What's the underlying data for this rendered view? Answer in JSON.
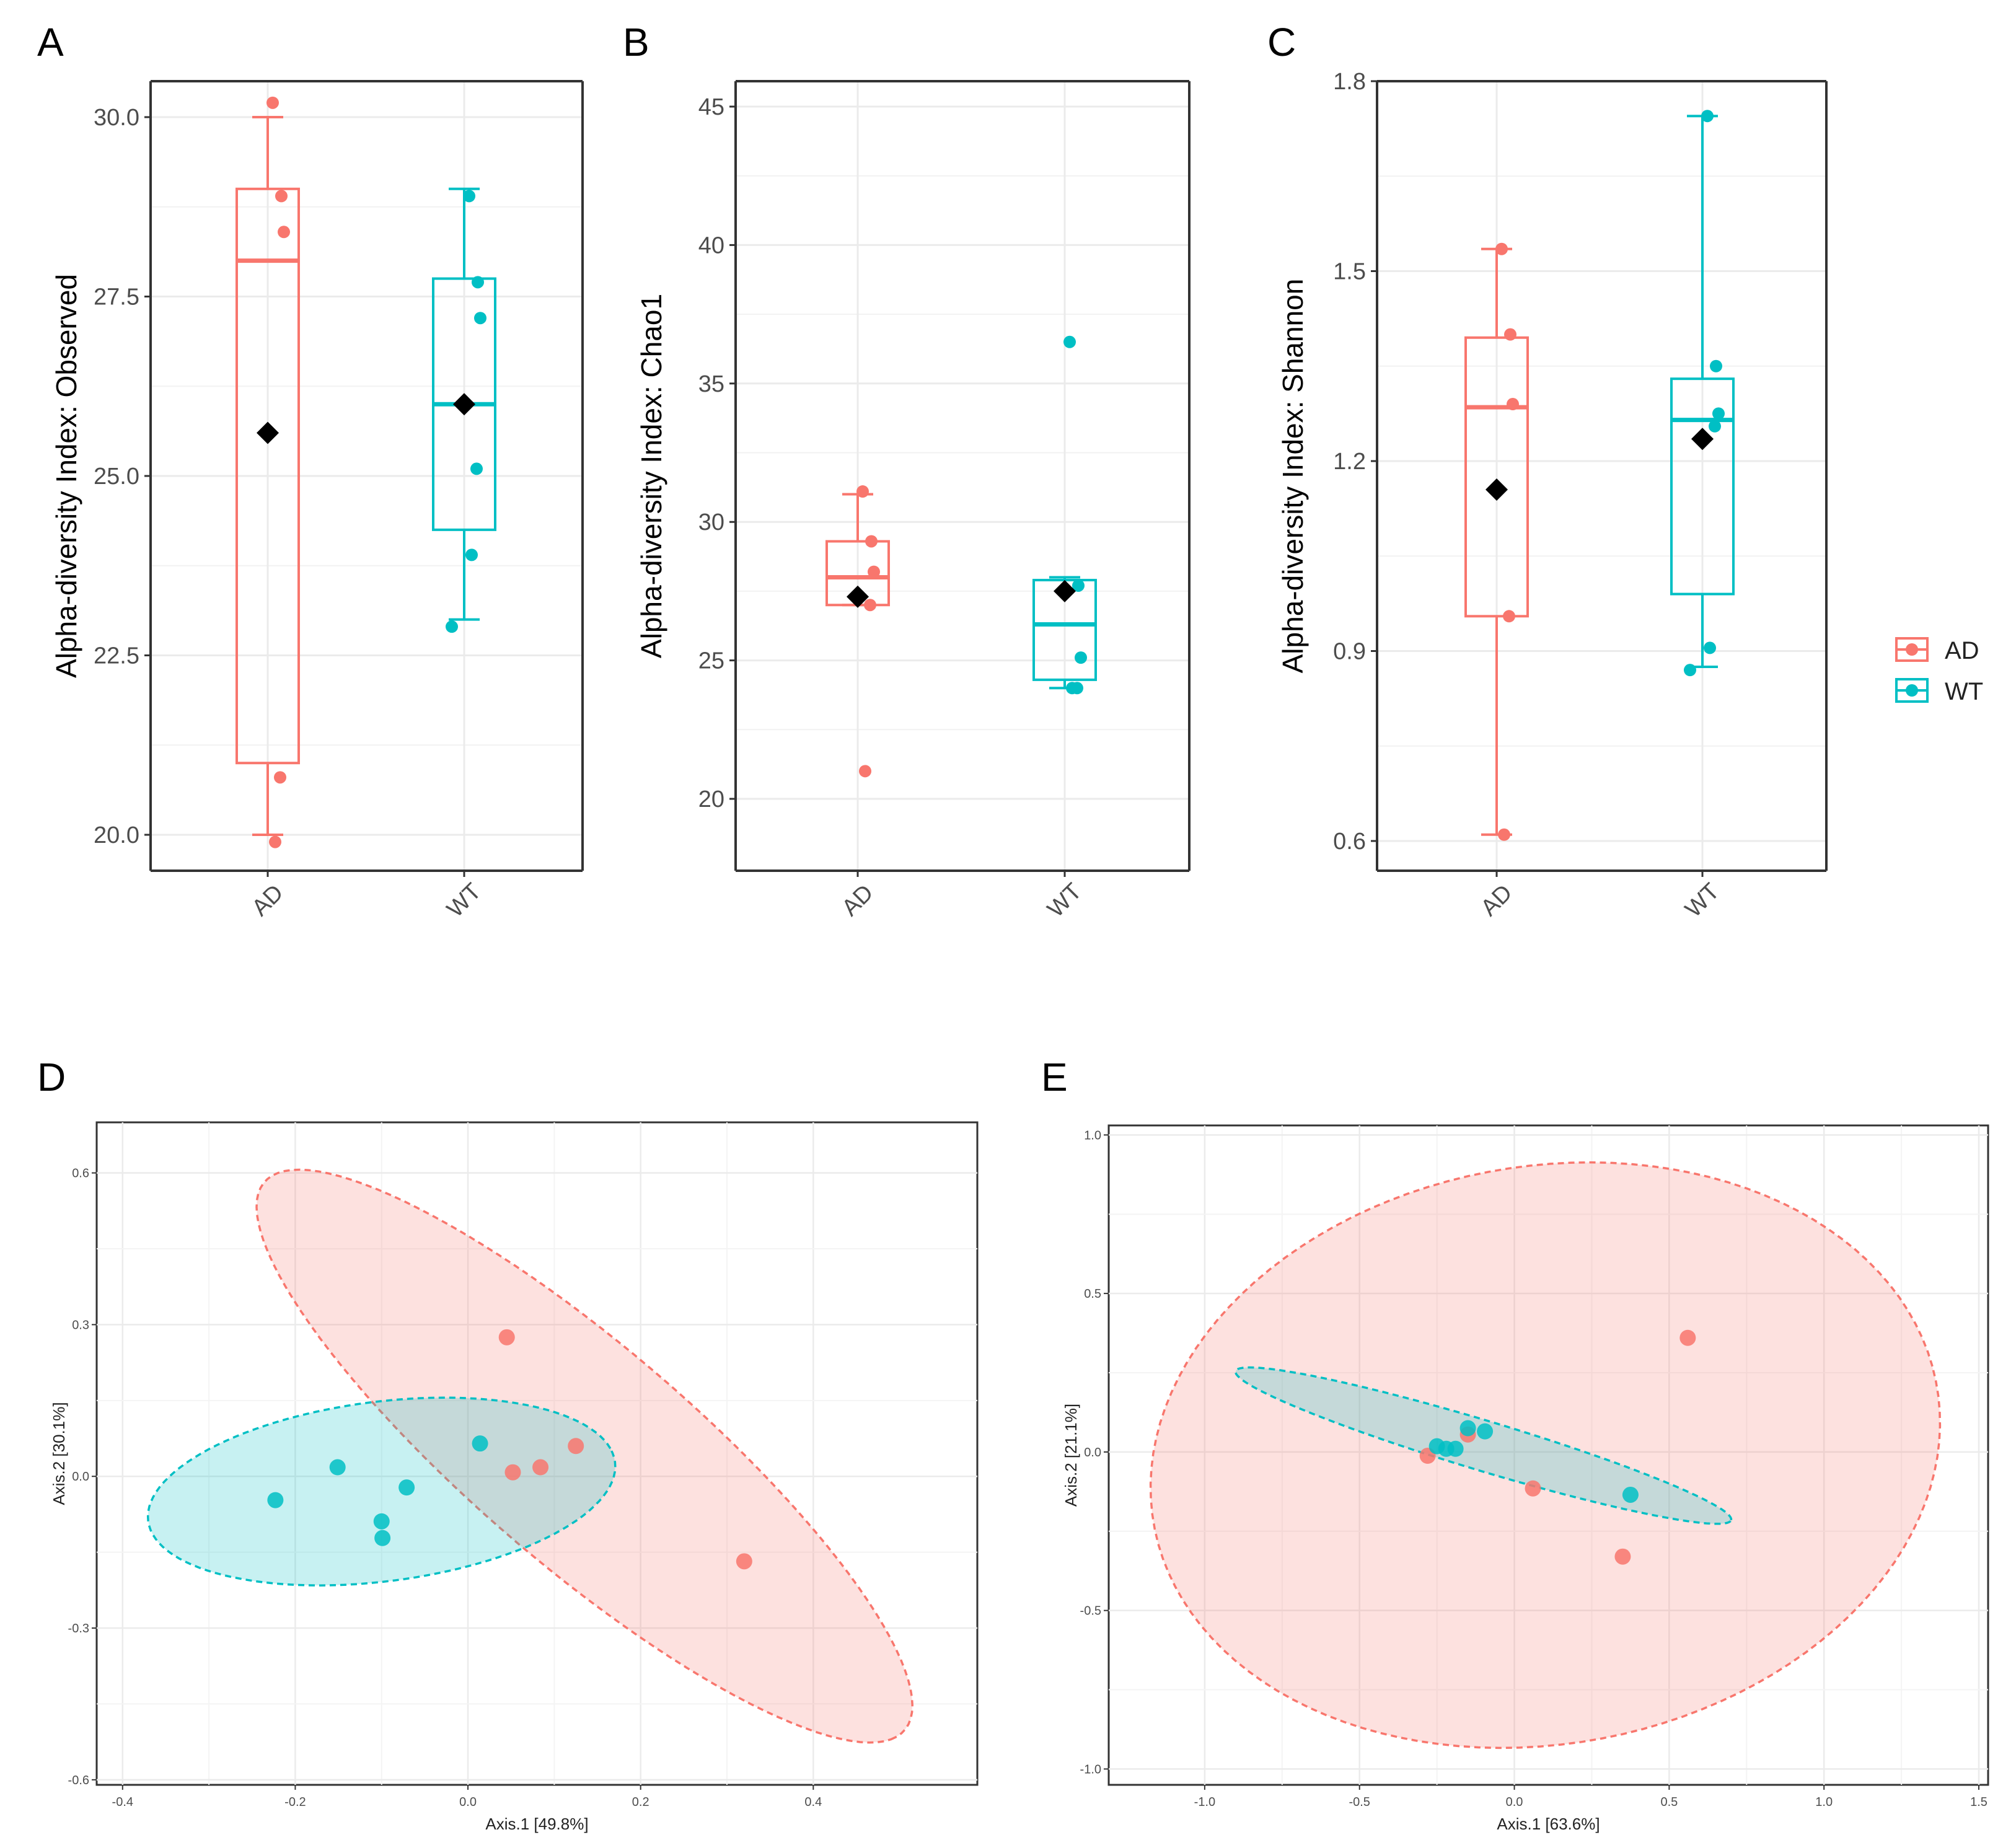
{
  "colors": {
    "AD": "#F8766D",
    "WT": "#00BFC4",
    "mean": "#000000",
    "grid": "#EBEBEB"
  },
  "legend": {
    "position": "right",
    "entries": [
      "AD",
      "WT"
    ]
  },
  "chart_data": [
    {
      "panel": "A",
      "type": "box",
      "ylabel": "Alpha-diversity Index: Observed",
      "categories": [
        "AD",
        "WT"
      ],
      "ylim": [
        19.6,
        30.5
      ],
      "yticks": [
        20.0,
        22.5,
        25.0,
        27.5,
        30.0
      ],
      "ytick_labels": [
        "20.0",
        "22.5",
        "25.0",
        "27.5",
        "30.0"
      ],
      "groups": [
        {
          "name": "AD",
          "lower": 20.0,
          "q1": 21.0,
          "median": 28.0,
          "q3": 29.0,
          "upper": 30.0,
          "mean": 25.6,
          "points": [
            30.2,
            28.9,
            28.4,
            20.8,
            19.9
          ]
        },
        {
          "name": "WT",
          "lower": 23.0,
          "q1": 24.25,
          "median": 26.0,
          "q3": 27.75,
          "upper": 29.0,
          "mean": 26.0,
          "points": [
            28.9,
            27.7,
            27.2,
            25.1,
            23.9,
            22.9
          ]
        }
      ]
    },
    {
      "panel": "B",
      "type": "box",
      "ylabel": "Alpha-diversity Index: Chao1",
      "categories": [
        "AD",
        "WT"
      ],
      "ylim": [
        17.5,
        45.9
      ],
      "yticks": [
        20,
        25,
        30,
        35,
        40,
        45
      ],
      "ytick_labels": [
        "20",
        "25",
        "30",
        "35",
        "40",
        "45"
      ],
      "groups": [
        {
          "name": "AD",
          "lower": 27.0,
          "q1": 27.0,
          "median": 28.0,
          "q3": 29.3,
          "upper": 31.0,
          "mean": 27.3,
          "points": [
            31.1,
            29.3,
            28.2,
            27.0,
            21.0
          ]
        },
        {
          "name": "WT",
          "lower": 24.0,
          "q1": 24.3,
          "median": 26.3,
          "q3": 27.9,
          "upper": 28.0,
          "mean": 27.5,
          "points": [
            36.5,
            27.7,
            25.1,
            24.0,
            24.0
          ]
        }
      ]
    },
    {
      "panel": "C",
      "type": "box",
      "ylabel": "Alpha-diversity Index: Shannon",
      "categories": [
        "AD",
        "WT"
      ],
      "ylim": [
        0.555,
        1.8
      ],
      "yticks": [
        0.6,
        0.9,
        1.2,
        1.5,
        1.8
      ],
      "ytick_labels": [
        "0.6",
        "0.9",
        "1.2",
        "1.5",
        "1.8"
      ],
      "groups": [
        {
          "name": "AD",
          "lower": 0.61,
          "q1": 0.955,
          "median": 1.285,
          "q3": 1.395,
          "upper": 1.535,
          "mean": 1.155,
          "points": [
            1.535,
            1.4,
            1.29,
            0.955,
            0.61
          ]
        },
        {
          "name": "WT",
          "lower": 0.875,
          "q1": 0.99,
          "median": 1.265,
          "q3": 1.33,
          "upper": 1.745,
          "mean": 1.235,
          "points": [
            1.745,
            1.35,
            1.275,
            1.255,
            0.905,
            0.87
          ]
        }
      ]
    },
    {
      "panel": "D",
      "type": "scatter",
      "xlabel": "Axis.1   [49.8%]",
      "ylabel": "Axis.2   [30.1%]",
      "xlim": [
        -0.43,
        0.59
      ],
      "ylim": [
        -0.61,
        0.7
      ],
      "xticks": [
        -0.4,
        -0.2,
        0.0,
        0.2,
        0.4
      ],
      "xtick_labels": [
        "-0.4",
        "-0.2",
        "0.0",
        "0.2",
        "0.4"
      ],
      "yticks": [
        -0.6,
        -0.3,
        0.0,
        0.3,
        0.6
      ],
      "ytick_labels": [
        "-0.6",
        "-0.3",
        "0.0",
        "0.3",
        "0.6"
      ],
      "series": [
        {
          "name": "AD",
          "points": [
            [
              0.045,
              0.275
            ],
            [
              0.052,
              0.008
            ],
            [
              0.084,
              0.018
            ],
            [
              0.125,
              0.06
            ],
            [
              0.32,
              -0.168
            ]
          ],
          "ellipse": {
            "center": [
              0.135,
              0.04
            ],
            "axis_a": [
              0.355,
              -0.56
            ],
            "axis_b": [
              0.135,
              0.085
            ]
          }
        },
        {
          "name": "WT",
          "points": [
            [
              -0.223,
              -0.047
            ],
            [
              -0.151,
              0.018
            ],
            [
              -0.1,
              -0.089
            ],
            [
              -0.099,
              -0.122
            ],
            [
              -0.071,
              -0.022
            ],
            [
              0.014,
              0.065
            ]
          ],
          "ellipse": {
            "center": [
              -0.1,
              -0.03
            ],
            "axis_a": [
              0.265,
              0.085
            ],
            "axis_b": [
              -0.055,
              0.165
            ]
          }
        }
      ]
    },
    {
      "panel": "E",
      "type": "scatter",
      "xlabel": "Axis.1   [63.6%]",
      "ylabel": "Axis.2   [21.1%]",
      "xlim": [
        -1.31,
        1.53
      ],
      "ylim": [
        -1.05,
        1.03
      ],
      "xticks": [
        -1.0,
        -0.5,
        0.0,
        0.5,
        1.0,
        1.5
      ],
      "xtick_labels": [
        "-1.0",
        "-0.5",
        "0.0",
        "0.5",
        "1.0",
        "1.5"
      ],
      "yticks": [
        -1.0,
        -0.5,
        0.0,
        0.5,
        1.0
      ],
      "ytick_labels": [
        "-1.0",
        "-0.5",
        "0.0",
        "0.5",
        "1.0"
      ],
      "series": [
        {
          "name": "AD",
          "points": [
            [
              0.56,
              0.36
            ],
            [
              0.35,
              -0.33
            ],
            [
              0.06,
              -0.115
            ],
            [
              -0.15,
              0.055
            ],
            [
              -0.28,
              -0.012
            ]
          ],
          "ellipse": {
            "center": [
              0.1,
              -0.01
            ],
            "axis_a": [
              1.25,
              0.28
            ],
            "axis_b": [
              -0.25,
              0.88
            ]
          }
        },
        {
          "name": "WT",
          "points": [
            [
              -0.25,
              0.018
            ],
            [
              -0.22,
              0.01
            ],
            [
              -0.19,
              0.01
            ],
            [
              -0.15,
              0.075
            ],
            [
              -0.095,
              0.065
            ],
            [
              0.375,
              -0.135
            ]
          ],
          "ellipse": {
            "center": [
              -0.1,
              0.02
            ],
            "axis_a": [
              0.8,
              -0.235
            ],
            "axis_b": [
              0.025,
              0.075
            ]
          }
        }
      ]
    }
  ]
}
